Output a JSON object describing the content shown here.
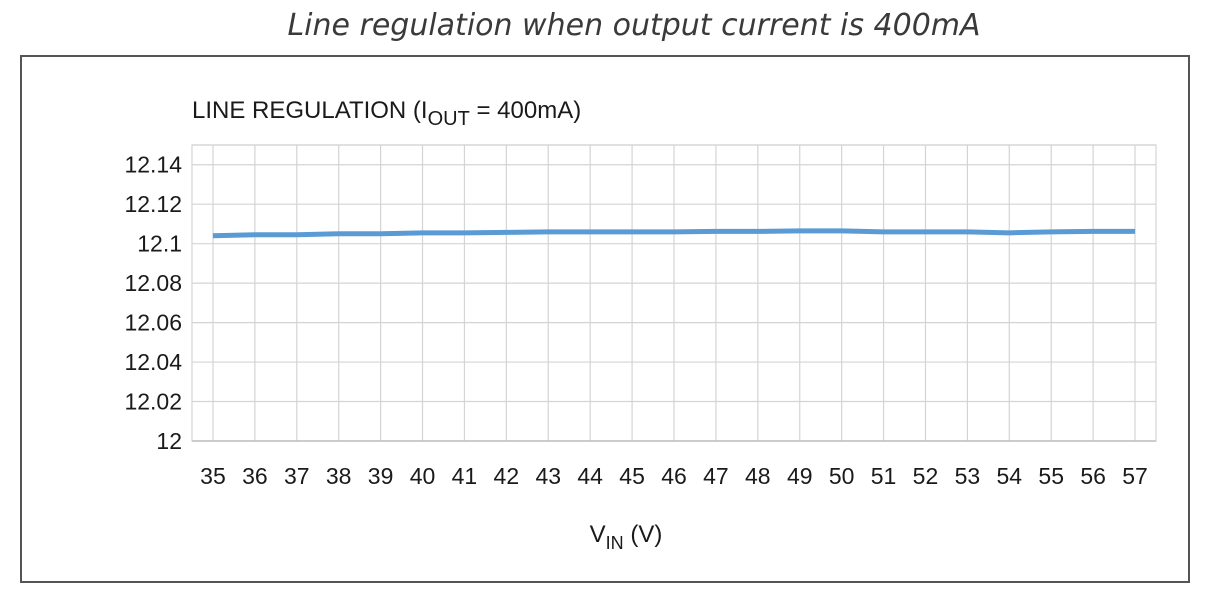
{
  "caption": "Line regulation when output current is 400mA",
  "chart_data": {
    "type": "line",
    "title": {
      "prefix": "LINE REGULATION  (I",
      "sub": "OUT",
      "suffix": " = 400mA)"
    },
    "xlabel": {
      "main": "V",
      "sub": "IN",
      "suffix": " (V)"
    },
    "ylabel": "",
    "x_ticks": [
      "35",
      "36",
      "37",
      "38",
      "39",
      "40",
      "41",
      "42",
      "43",
      "44",
      "45",
      "46",
      "47",
      "48",
      "49",
      "50",
      "51",
      "52",
      "53",
      "54",
      "55",
      "56",
      "57"
    ],
    "y_ticks": [
      "12",
      "12.02",
      "12.04",
      "12.06",
      "12.08",
      "12.1",
      "12.12",
      "12.14"
    ],
    "xlim": [
      34.5,
      57.5
    ],
    "ylim": [
      12,
      12.15
    ],
    "grid": true,
    "series": [
      {
        "color": "#5b9bd5",
        "x": [
          35,
          36,
          37,
          38,
          39,
          40,
          41,
          42,
          43,
          44,
          45,
          46,
          47,
          48,
          49,
          50,
          51,
          52,
          53,
          54,
          55,
          56,
          57
        ],
        "y": [
          12.104,
          12.1045,
          12.1045,
          12.105,
          12.105,
          12.1055,
          12.1055,
          12.1057,
          12.106,
          12.106,
          12.106,
          12.106,
          12.1062,
          12.1062,
          12.1065,
          12.1065,
          12.106,
          12.106,
          12.106,
          12.1055,
          12.106,
          12.1062,
          12.1062
        ]
      }
    ]
  }
}
